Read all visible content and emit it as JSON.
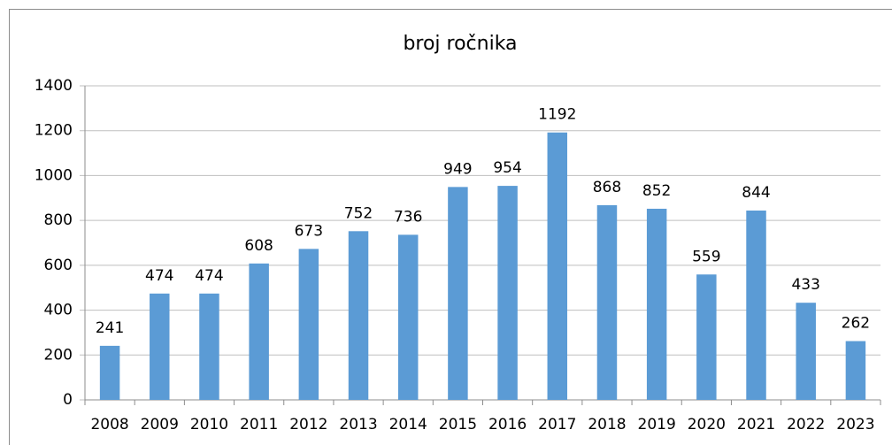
{
  "chart_data": {
    "type": "bar",
    "title": "broj ročnika",
    "categories": [
      "2008",
      "2009",
      "2010",
      "2011",
      "2012",
      "2013",
      "2014",
      "2015",
      "2016",
      "2017",
      "2018",
      "2019",
      "2020",
      "2021",
      "2022",
      "2023"
    ],
    "values": [
      241,
      474,
      474,
      608,
      673,
      752,
      736,
      949,
      954,
      1192,
      868,
      852,
      559,
      844,
      433,
      262
    ],
    "color": "#5b9bd5",
    "ylim": [
      0,
      1400
    ],
    "yticks": [
      0,
      200,
      400,
      600,
      800,
      1000,
      1200,
      1400
    ],
    "grid": true
  }
}
